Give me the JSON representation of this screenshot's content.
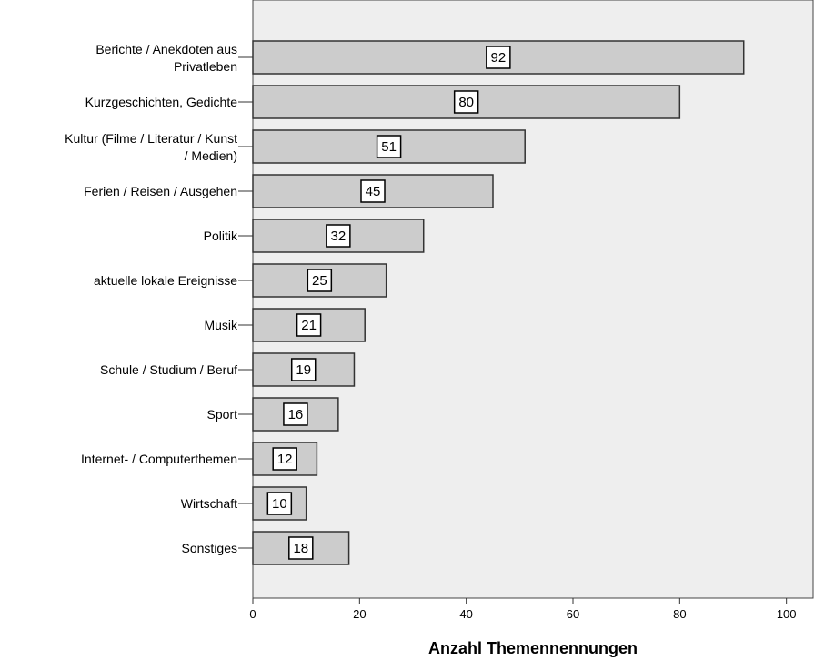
{
  "chart_data": {
    "type": "bar",
    "orientation": "horizontal",
    "categories": [
      [
        "Berichte / Anekdoten aus",
        "Privatleben"
      ],
      [
        "Kurzgeschichten, Gedichte"
      ],
      [
        "Kultur (Filme / Literatur / Kunst",
        "/ Medien)"
      ],
      [
        "Ferien / Reisen / Ausgehen"
      ],
      [
        "Politik"
      ],
      [
        "aktuelle lokale Ereignisse"
      ],
      [
        "Musik"
      ],
      [
        "Schule / Studium / Beruf"
      ],
      [
        "Sport"
      ],
      [
        "Internet- / Computerthemen"
      ],
      [
        "Wirtschaft"
      ],
      [
        "Sonstiges"
      ]
    ],
    "values": [
      92,
      80,
      51,
      45,
      32,
      25,
      21,
      19,
      16,
      12,
      10,
      18
    ],
    "xlabel": "Anzahl Themennennungen",
    "ylabel": "",
    "xlim": [
      0,
      105
    ],
    "xticks": [
      0,
      20,
      40,
      60,
      80,
      100
    ],
    "grid": false,
    "data_labels": true,
    "colors": {
      "bar_fill": "#cccccc",
      "bar_stroke": "#333333",
      "plot_background": "#eeeeee",
      "label_box": "#ffffff"
    }
  }
}
